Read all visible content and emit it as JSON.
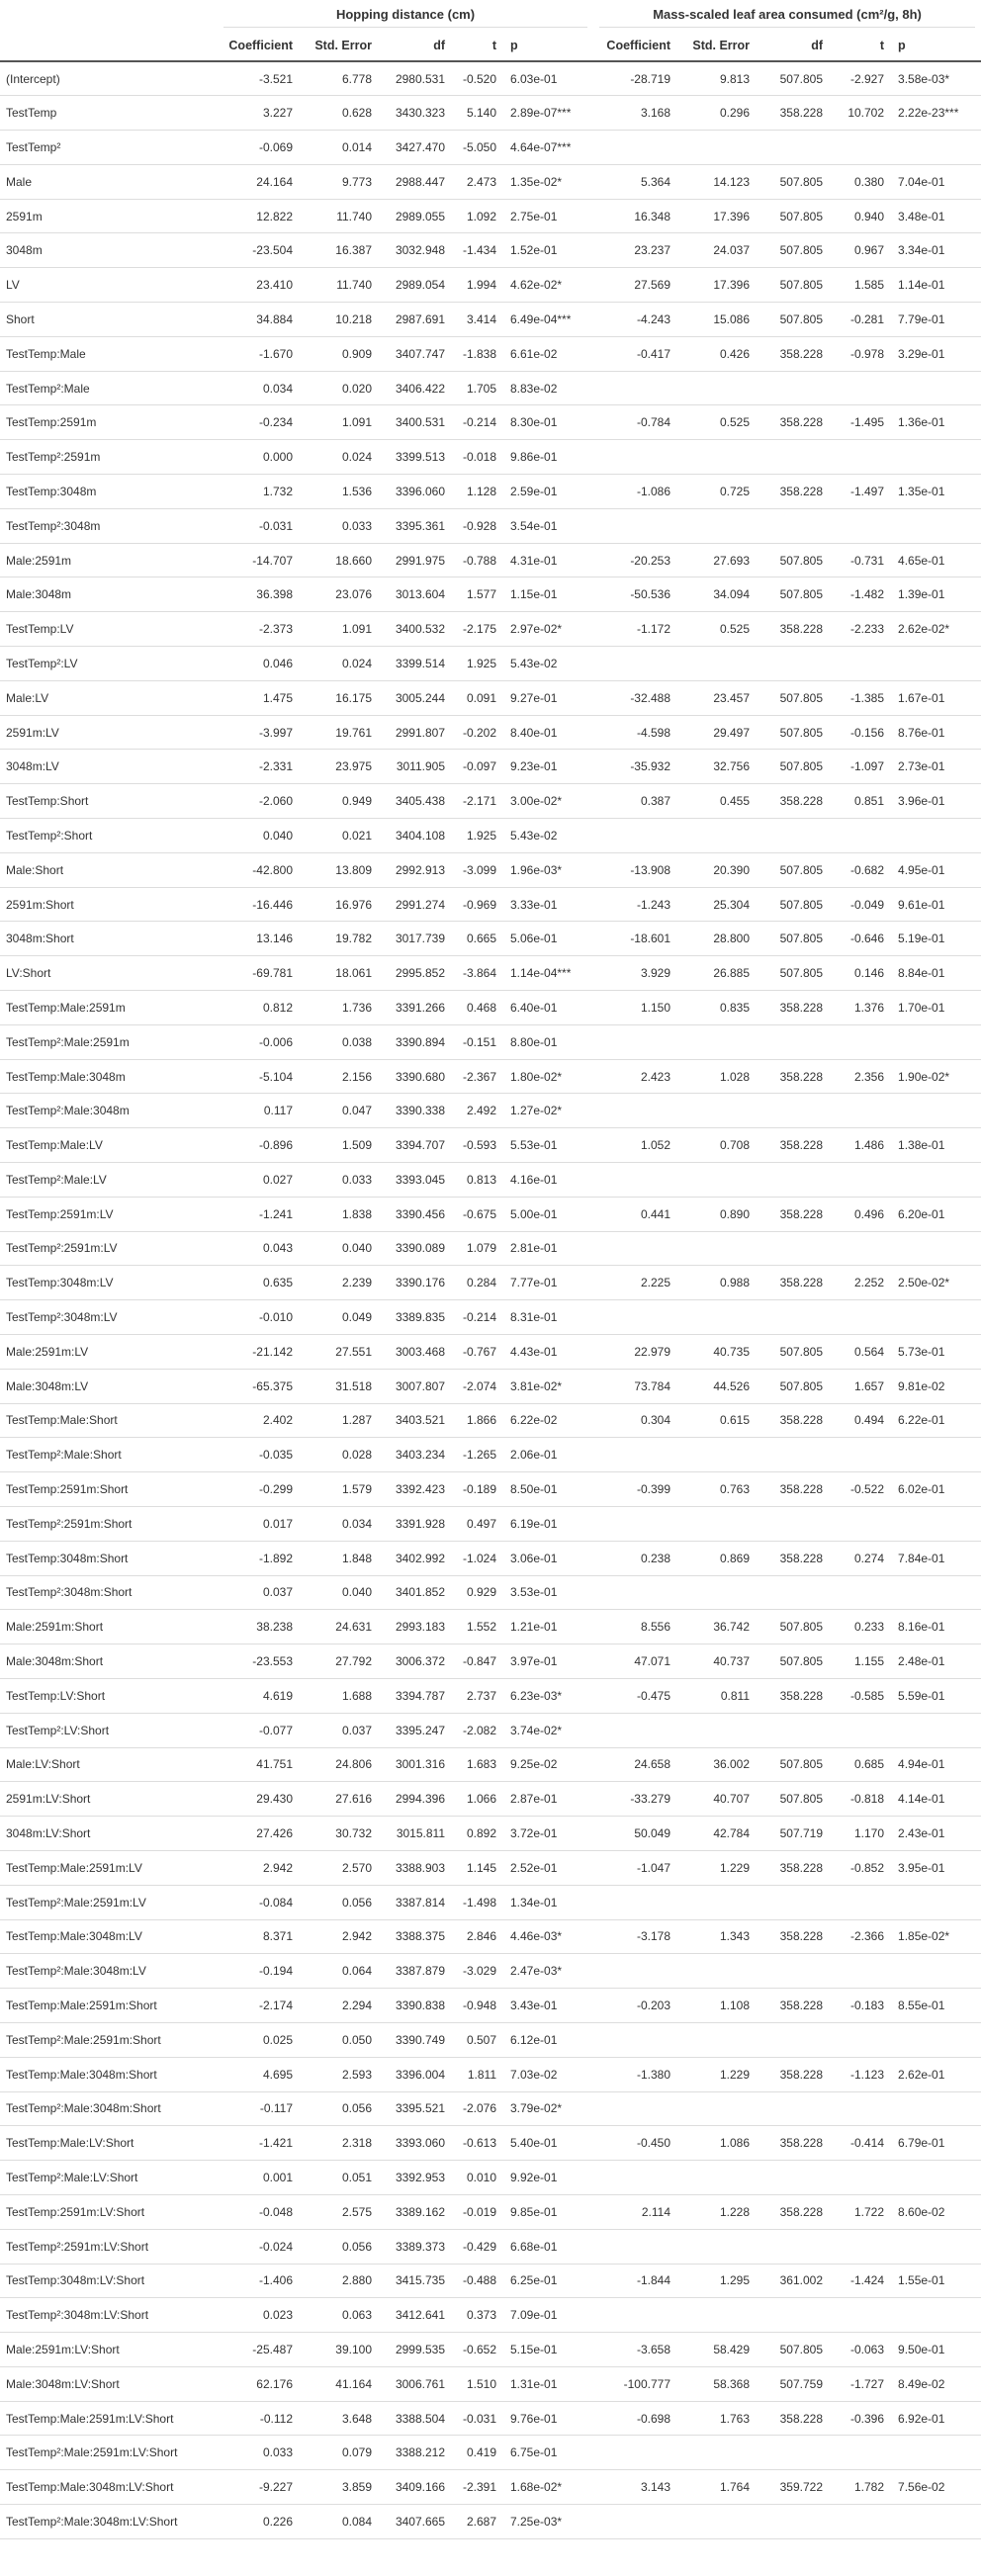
{
  "table": {
    "group1": "Hopping distance (cm)",
    "group2": "Mass-scaled leaf area consumed (cm²/g, 8h)",
    "columns": [
      "Coefficient",
      "Std. Error",
      "df",
      "t",
      "p"
    ],
    "rows": [
      [
        "(Intercept)",
        "-3.521",
        "6.778",
        "2980.531",
        "-0.520",
        "6.03e-01",
        "-28.719",
        "9.813",
        "507.805",
        "-2.927",
        "3.58e-03*"
      ],
      [
        "TestTemp",
        "3.227",
        "0.628",
        "3430.323",
        "5.140",
        "2.89e-07***",
        "3.168",
        "0.296",
        "358.228",
        "10.702",
        "2.22e-23***"
      ],
      [
        "TestTemp²",
        "-0.069",
        "0.014",
        "3427.470",
        "-5.050",
        "4.64e-07***",
        "",
        "",
        "",
        "",
        ""
      ],
      [
        "Male",
        "24.164",
        "9.773",
        "2988.447",
        "2.473",
        "1.35e-02*",
        "5.364",
        "14.123",
        "507.805",
        "0.380",
        "7.04e-01"
      ],
      [
        "2591m",
        "12.822",
        "11.740",
        "2989.055",
        "1.092",
        "2.75e-01",
        "16.348",
        "17.396",
        "507.805",
        "0.940",
        "3.48e-01"
      ],
      [
        "3048m",
        "-23.504",
        "16.387",
        "3032.948",
        "-1.434",
        "1.52e-01",
        "23.237",
        "24.037",
        "507.805",
        "0.967",
        "3.34e-01"
      ],
      [
        "LV",
        "23.410",
        "11.740",
        "2989.054",
        "1.994",
        "4.62e-02*",
        "27.569",
        "17.396",
        "507.805",
        "1.585",
        "1.14e-01"
      ],
      [
        "Short",
        "34.884",
        "10.218",
        "2987.691",
        "3.414",
        "6.49e-04***",
        "-4.243",
        "15.086",
        "507.805",
        "-0.281",
        "7.79e-01"
      ],
      [
        "TestTemp:Male",
        "-1.670",
        "0.909",
        "3407.747",
        "-1.838",
        "6.61e-02",
        "-0.417",
        "0.426",
        "358.228",
        "-0.978",
        "3.29e-01"
      ],
      [
        "TestTemp²:Male",
        "0.034",
        "0.020",
        "3406.422",
        "1.705",
        "8.83e-02",
        "",
        "",
        "",
        "",
        ""
      ],
      [
        "TestTemp:2591m",
        "-0.234",
        "1.091",
        "3400.531",
        "-0.214",
        "8.30e-01",
        "-0.784",
        "0.525",
        "358.228",
        "-1.495",
        "1.36e-01"
      ],
      [
        "TestTemp²:2591m",
        "0.000",
        "0.024",
        "3399.513",
        "-0.018",
        "9.86e-01",
        "",
        "",
        "",
        "",
        ""
      ],
      [
        "TestTemp:3048m",
        "1.732",
        "1.536",
        "3396.060",
        "1.128",
        "2.59e-01",
        "-1.086",
        "0.725",
        "358.228",
        "-1.497",
        "1.35e-01"
      ],
      [
        "TestTemp²:3048m",
        "-0.031",
        "0.033",
        "3395.361",
        "-0.928",
        "3.54e-01",
        "",
        "",
        "",
        "",
        ""
      ],
      [
        "Male:2591m",
        "-14.707",
        "18.660",
        "2991.975",
        "-0.788",
        "4.31e-01",
        "-20.253",
        "27.693",
        "507.805",
        "-0.731",
        "4.65e-01"
      ],
      [
        "Male:3048m",
        "36.398",
        "23.076",
        "3013.604",
        "1.577",
        "1.15e-01",
        "-50.536",
        "34.094",
        "507.805",
        "-1.482",
        "1.39e-01"
      ],
      [
        "TestTemp:LV",
        "-2.373",
        "1.091",
        "3400.532",
        "-2.175",
        "2.97e-02*",
        "-1.172",
        "0.525",
        "358.228",
        "-2.233",
        "2.62e-02*"
      ],
      [
        "TestTemp²:LV",
        "0.046",
        "0.024",
        "3399.514",
        "1.925",
        "5.43e-02",
        "",
        "",
        "",
        "",
        ""
      ],
      [
        "Male:LV",
        "1.475",
        "16.175",
        "3005.244",
        "0.091",
        "9.27e-01",
        "-32.488",
        "23.457",
        "507.805",
        "-1.385",
        "1.67e-01"
      ],
      [
        "2591m:LV",
        "-3.997",
        "19.761",
        "2991.807",
        "-0.202",
        "8.40e-01",
        "-4.598",
        "29.497",
        "507.805",
        "-0.156",
        "8.76e-01"
      ],
      [
        "3048m:LV",
        "-2.331",
        "23.975",
        "3011.905",
        "-0.097",
        "9.23e-01",
        "-35.932",
        "32.756",
        "507.805",
        "-1.097",
        "2.73e-01"
      ],
      [
        "TestTemp:Short",
        "-2.060",
        "0.949",
        "3405.438",
        "-2.171",
        "3.00e-02*",
        "0.387",
        "0.455",
        "358.228",
        "0.851",
        "3.96e-01"
      ],
      [
        "TestTemp²:Short",
        "0.040",
        "0.021",
        "3404.108",
        "1.925",
        "5.43e-02",
        "",
        "",
        "",
        "",
        ""
      ],
      [
        "Male:Short",
        "-42.800",
        "13.809",
        "2992.913",
        "-3.099",
        "1.96e-03*",
        "-13.908",
        "20.390",
        "507.805",
        "-0.682",
        "4.95e-01"
      ],
      [
        "2591m:Short",
        "-16.446",
        "16.976",
        "2991.274",
        "-0.969",
        "3.33e-01",
        "-1.243",
        "25.304",
        "507.805",
        "-0.049",
        "9.61e-01"
      ],
      [
        "3048m:Short",
        "13.146",
        "19.782",
        "3017.739",
        "0.665",
        "5.06e-01",
        "-18.601",
        "28.800",
        "507.805",
        "-0.646",
        "5.19e-01"
      ],
      [
        "LV:Short",
        "-69.781",
        "18.061",
        "2995.852",
        "-3.864",
        "1.14e-04***",
        "3.929",
        "26.885",
        "507.805",
        "0.146",
        "8.84e-01"
      ],
      [
        "TestTemp:Male:2591m",
        "0.812",
        "1.736",
        "3391.266",
        "0.468",
        "6.40e-01",
        "1.150",
        "0.835",
        "358.228",
        "1.376",
        "1.70e-01"
      ],
      [
        "TestTemp²:Male:2591m",
        "-0.006",
        "0.038",
        "3390.894",
        "-0.151",
        "8.80e-01",
        "",
        "",
        "",
        "",
        ""
      ],
      [
        "TestTemp:Male:3048m",
        "-5.104",
        "2.156",
        "3390.680",
        "-2.367",
        "1.80e-02*",
        "2.423",
        "1.028",
        "358.228",
        "2.356",
        "1.90e-02*"
      ],
      [
        "TestTemp²:Male:3048m",
        "0.117",
        "0.047",
        "3390.338",
        "2.492",
        "1.27e-02*",
        "",
        "",
        "",
        "",
        ""
      ],
      [
        "TestTemp:Male:LV",
        "-0.896",
        "1.509",
        "3394.707",
        "-0.593",
        "5.53e-01",
        "1.052",
        "0.708",
        "358.228",
        "1.486",
        "1.38e-01"
      ],
      [
        "TestTemp²:Male:LV",
        "0.027",
        "0.033",
        "3393.045",
        "0.813",
        "4.16e-01",
        "",
        "",
        "",
        "",
        ""
      ],
      [
        "TestTemp:2591m:LV",
        "-1.241",
        "1.838",
        "3390.456",
        "-0.675",
        "5.00e-01",
        "0.441",
        "0.890",
        "358.228",
        "0.496",
        "6.20e-01"
      ],
      [
        "TestTemp²:2591m:LV",
        "0.043",
        "0.040",
        "3390.089",
        "1.079",
        "2.81e-01",
        "",
        "",
        "",
        "",
        ""
      ],
      [
        "TestTemp:3048m:LV",
        "0.635",
        "2.239",
        "3390.176",
        "0.284",
        "7.77e-01",
        "2.225",
        "0.988",
        "358.228",
        "2.252",
        "2.50e-02*"
      ],
      [
        "TestTemp²:3048m:LV",
        "-0.010",
        "0.049",
        "3389.835",
        "-0.214",
        "8.31e-01",
        "",
        "",
        "",
        "",
        ""
      ],
      [
        "Male:2591m:LV",
        "-21.142",
        "27.551",
        "3003.468",
        "-0.767",
        "4.43e-01",
        "22.979",
        "40.735",
        "507.805",
        "0.564",
        "5.73e-01"
      ],
      [
        "Male:3048m:LV",
        "-65.375",
        "31.518",
        "3007.807",
        "-2.074",
        "3.81e-02*",
        "73.784",
        "44.526",
        "507.805",
        "1.657",
        "9.81e-02"
      ],
      [
        "TestTemp:Male:Short",
        "2.402",
        "1.287",
        "3403.521",
        "1.866",
        "6.22e-02",
        "0.304",
        "0.615",
        "358.228",
        "0.494",
        "6.22e-01"
      ],
      [
        "TestTemp²:Male:Short",
        "-0.035",
        "0.028",
        "3403.234",
        "-1.265",
        "2.06e-01",
        "",
        "",
        "",
        "",
        ""
      ],
      [
        "TestTemp:2591m:Short",
        "-0.299",
        "1.579",
        "3392.423",
        "-0.189",
        "8.50e-01",
        "-0.399",
        "0.763",
        "358.228",
        "-0.522",
        "6.02e-01"
      ],
      [
        "TestTemp²:2591m:Short",
        "0.017",
        "0.034",
        "3391.928",
        "0.497",
        "6.19e-01",
        "",
        "",
        "",
        "",
        ""
      ],
      [
        "TestTemp:3048m:Short",
        "-1.892",
        "1.848",
        "3402.992",
        "-1.024",
        "3.06e-01",
        "0.238",
        "0.869",
        "358.228",
        "0.274",
        "7.84e-01"
      ],
      [
        "TestTemp²:3048m:Short",
        "0.037",
        "0.040",
        "3401.852",
        "0.929",
        "3.53e-01",
        "",
        "",
        "",
        "",
        ""
      ],
      [
        "Male:2591m:Short",
        "38.238",
        "24.631",
        "2993.183",
        "1.552",
        "1.21e-01",
        "8.556",
        "36.742",
        "507.805",
        "0.233",
        "8.16e-01"
      ],
      [
        "Male:3048m:Short",
        "-23.553",
        "27.792",
        "3006.372",
        "-0.847",
        "3.97e-01",
        "47.071",
        "40.737",
        "507.805",
        "1.155",
        "2.48e-01"
      ],
      [
        "TestTemp:LV:Short",
        "4.619",
        "1.688",
        "3394.787",
        "2.737",
        "6.23e-03*",
        "-0.475",
        "0.811",
        "358.228",
        "-0.585",
        "5.59e-01"
      ],
      [
        "TestTemp²:LV:Short",
        "-0.077",
        "0.037",
        "3395.247",
        "-2.082",
        "3.74e-02*",
        "",
        "",
        "",
        "",
        ""
      ],
      [
        "Male:LV:Short",
        "41.751",
        "24.806",
        "3001.316",
        "1.683",
        "9.25e-02",
        "24.658",
        "36.002",
        "507.805",
        "0.685",
        "4.94e-01"
      ],
      [
        "2591m:LV:Short",
        "29.430",
        "27.616",
        "2994.396",
        "1.066",
        "2.87e-01",
        "-33.279",
        "40.707",
        "507.805",
        "-0.818",
        "4.14e-01"
      ],
      [
        "3048m:LV:Short",
        "27.426",
        "30.732",
        "3015.811",
        "0.892",
        "3.72e-01",
        "50.049",
        "42.784",
        "507.719",
        "1.170",
        "2.43e-01"
      ],
      [
        "TestTemp:Male:2591m:LV",
        "2.942",
        "2.570",
        "3388.903",
        "1.145",
        "2.52e-01",
        "-1.047",
        "1.229",
        "358.228",
        "-0.852",
        "3.95e-01"
      ],
      [
        "TestTemp²:Male:2591m:LV",
        "-0.084",
        "0.056",
        "3387.814",
        "-1.498",
        "1.34e-01",
        "",
        "",
        "",
        "",
        ""
      ],
      [
        "TestTemp:Male:3048m:LV",
        "8.371",
        "2.942",
        "3388.375",
        "2.846",
        "4.46e-03*",
        "-3.178",
        "1.343",
        "358.228",
        "-2.366",
        "1.85e-02*"
      ],
      [
        "TestTemp²:Male:3048m:LV",
        "-0.194",
        "0.064",
        "3387.879",
        "-3.029",
        "2.47e-03*",
        "",
        "",
        "",
        "",
        ""
      ],
      [
        "TestTemp:Male:2591m:Short",
        "-2.174",
        "2.294",
        "3390.838",
        "-0.948",
        "3.43e-01",
        "-0.203",
        "1.108",
        "358.228",
        "-0.183",
        "8.55e-01"
      ],
      [
        "TestTemp²:Male:2591m:Short",
        "0.025",
        "0.050",
        "3390.749",
        "0.507",
        "6.12e-01",
        "",
        "",
        "",
        "",
        ""
      ],
      [
        "TestTemp:Male:3048m:Short",
        "4.695",
        "2.593",
        "3396.004",
        "1.811",
        "7.03e-02",
        "-1.380",
        "1.229",
        "358.228",
        "-1.123",
        "2.62e-01"
      ],
      [
        "TestTemp²:Male:3048m:Short",
        "-0.117",
        "0.056",
        "3395.521",
        "-2.076",
        "3.79e-02*",
        "",
        "",
        "",
        "",
        ""
      ],
      [
        "TestTemp:Male:LV:Short",
        "-1.421",
        "2.318",
        "3393.060",
        "-0.613",
        "5.40e-01",
        "-0.450",
        "1.086",
        "358.228",
        "-0.414",
        "6.79e-01"
      ],
      [
        "TestTemp²:Male:LV:Short",
        "0.001",
        "0.051",
        "3392.953",
        "0.010",
        "9.92e-01",
        "",
        "",
        "",
        "",
        ""
      ],
      [
        "TestTemp:2591m:LV:Short",
        "-0.048",
        "2.575",
        "3389.162",
        "-0.019",
        "9.85e-01",
        "2.114",
        "1.228",
        "358.228",
        "1.722",
        "8.60e-02"
      ],
      [
        "TestTemp²:2591m:LV:Short",
        "-0.024",
        "0.056",
        "3389.373",
        "-0.429",
        "6.68e-01",
        "",
        "",
        "",
        "",
        ""
      ],
      [
        "TestTemp:3048m:LV:Short",
        "-1.406",
        "2.880",
        "3415.735",
        "-0.488",
        "6.25e-01",
        "-1.844",
        "1.295",
        "361.002",
        "-1.424",
        "1.55e-01"
      ],
      [
        "TestTemp²:3048m:LV:Short",
        "0.023",
        "0.063",
        "3412.641",
        "0.373",
        "7.09e-01",
        "",
        "",
        "",
        "",
        ""
      ],
      [
        "Male:2591m:LV:Short",
        "-25.487",
        "39.100",
        "2999.535",
        "-0.652",
        "5.15e-01",
        "-3.658",
        "58.429",
        "507.805",
        "-0.063",
        "9.50e-01"
      ],
      [
        "Male:3048m:LV:Short",
        "62.176",
        "41.164",
        "3006.761",
        "1.510",
        "1.31e-01",
        "-100.777",
        "58.368",
        "507.759",
        "-1.727",
        "8.49e-02"
      ],
      [
        "TestTemp:Male:2591m:LV:Short",
        "-0.112",
        "3.648",
        "3388.504",
        "-0.031",
        "9.76e-01",
        "-0.698",
        "1.763",
        "358.228",
        "-0.396",
        "6.92e-01"
      ],
      [
        "TestTemp²:Male:2591m:LV:Short",
        "0.033",
        "0.079",
        "3388.212",
        "0.419",
        "6.75e-01",
        "",
        "",
        "",
        "",
        ""
      ],
      [
        "TestTemp:Male:3048m:LV:Short",
        "-9.227",
        "3.859",
        "3409.166",
        "-2.391",
        "1.68e-02*",
        "3.143",
        "1.764",
        "359.722",
        "1.782",
        "7.56e-02"
      ],
      [
        "TestTemp²:Male:3048m:LV:Short",
        "0.226",
        "0.084",
        "3407.665",
        "2.687",
        "7.25e-03*",
        "",
        "",
        "",
        "",
        ""
      ]
    ]
  }
}
